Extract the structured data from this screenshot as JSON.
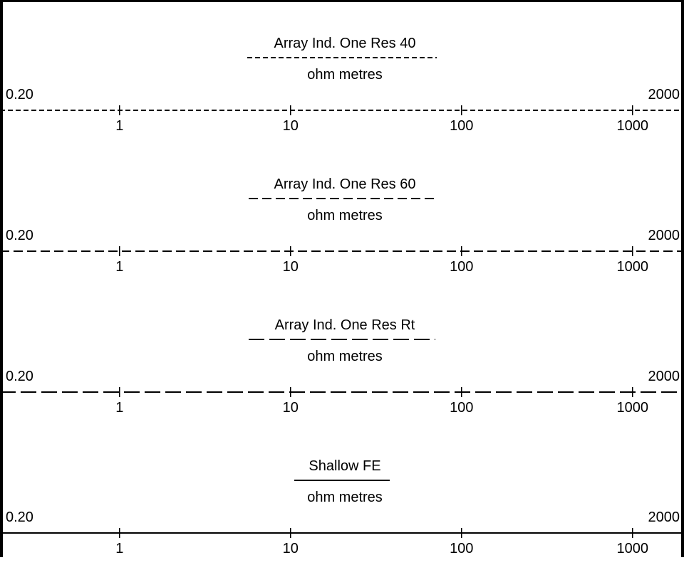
{
  "panels": [
    {
      "curve_name": "Array Ind. One Res 40",
      "units": "ohm metres",
      "scale_min": "0.20",
      "scale_max": "2000",
      "line_style": "short-dash",
      "tick_labels": [
        "1",
        "10",
        "100",
        "1000"
      ]
    },
    {
      "curve_name": "Array Ind. One Res 60",
      "units": "ohm metres",
      "scale_min": "0.20",
      "scale_max": "2000",
      "line_style": "medium-dash",
      "tick_labels": [
        "1",
        "10",
        "100",
        "1000"
      ]
    },
    {
      "curve_name": "Array Ind. One Res Rt",
      "units": "ohm metres",
      "scale_min": "0.20",
      "scale_max": "2000",
      "line_style": "long-dash",
      "tick_labels": [
        "1",
        "10",
        "100",
        "1000"
      ]
    },
    {
      "curve_name": "Shallow FE",
      "units": "ohm metres",
      "scale_min": "0.20",
      "scale_max": "2000",
      "line_style": "solid",
      "tick_labels": [
        "1",
        "10",
        "100",
        "1000"
      ]
    }
  ],
  "scale_type": "logarithmic"
}
